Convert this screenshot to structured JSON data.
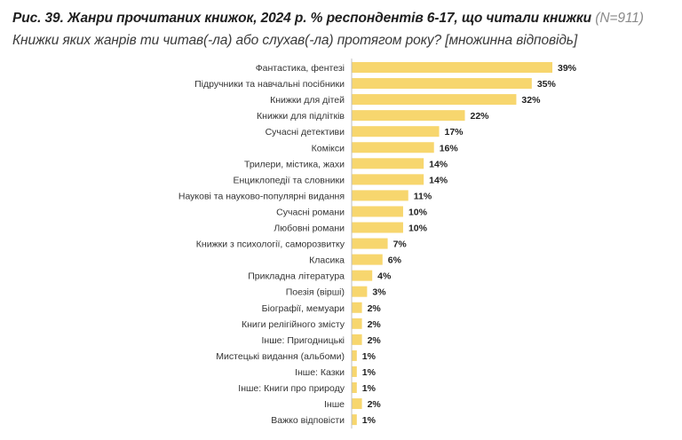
{
  "title_main": "Рис. 39. Жанри прочитаних книжок, 2024 р. % респондентів 6-17, що читали книжки",
  "title_n": "(N=911)",
  "subtitle": "Книжки яких жанрів ти читав(-ла) або слухав(-ла) протягом року? [множинна відповідь]",
  "chart_data": {
    "type": "bar",
    "orientation": "horizontal",
    "bar_color": "#F7D66E",
    "categories": [
      "Фантастика, фентезі",
      "Підручники та навчальні посібники",
      "Книжки для дітей",
      "Книжки для підлітків",
      "Сучасні детективи",
      "Комікси",
      "Трилери, містика, жахи",
      "Енциклопедії та словники",
      "Наукові та науково-популярні видання",
      "Сучасні романи",
      "Любовні романи",
      "Книжки з психології, саморозвитку",
      "Класика",
      "Прикладна література",
      "Поезія (вірші)",
      "Біографії, мемуари",
      "Книги релігійного змісту",
      "Інше: Пригодницькі",
      "Мистецькі видання (альбоми)",
      "Інше: Казки",
      "Інше: Книги про природу",
      "Інше",
      "Важко відповісти"
    ],
    "values": [
      39,
      35,
      32,
      22,
      17,
      16,
      14,
      14,
      11,
      10,
      10,
      7,
      6,
      4,
      3,
      2,
      2,
      2,
      1,
      1,
      1,
      2,
      1
    ],
    "value_labels": [
      "39%",
      "35%",
      "32%",
      "22%",
      "17%",
      "16%",
      "14%",
      "14%",
      "11%",
      "10%",
      "10%",
      "7%",
      "6%",
      "4%",
      "3%",
      "2%",
      "2%",
      "2%",
      "1%",
      "1%",
      "1%",
      "2%",
      "1%"
    ],
    "xlim": [
      0,
      39
    ],
    "grid": false
  }
}
